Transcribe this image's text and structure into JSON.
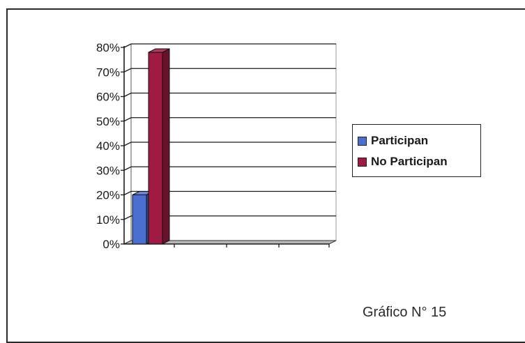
{
  "chart_data": {
    "type": "bar",
    "categories": [
      ""
    ],
    "series": [
      {
        "name": "Participan",
        "values": [
          20
        ],
        "color": "#4a6fd1"
      },
      {
        "name": "No Participan",
        "values": [
          78
        ],
        "color": "#a01a42"
      }
    ],
    "ylim": [
      0,
      80
    ],
    "yticks": [
      "0%",
      "10%",
      "20%",
      "30%",
      "40%",
      "50%",
      "60%",
      "70%",
      "80%"
    ],
    "grid": true,
    "three_d": true,
    "legend_position": "right"
  },
  "caption": "Gráfico N° 15"
}
